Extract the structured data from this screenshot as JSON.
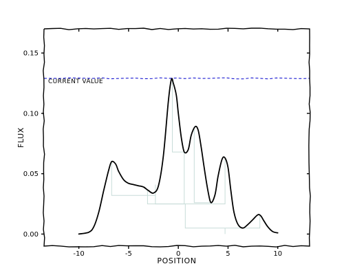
{
  "chart_data": {
    "type": "line",
    "style": "xkcd hand-drawn",
    "title": "",
    "xlabel": "POSITION",
    "ylabel": "FLUX",
    "xlim": [
      -13.5,
      13.2
    ],
    "ylim": [
      -0.01,
      0.17
    ],
    "xticks": [
      -10,
      -5,
      0,
      5,
      10
    ],
    "yticks": [
      0.0,
      0.05,
      0.1,
      0.15
    ],
    "xtick_labels": [
      "-10",
      "-5",
      "0",
      "5",
      "10"
    ],
    "ytick_labels": [
      "0.00",
      "0.05",
      "0.10",
      "0.15"
    ],
    "grid": false,
    "reference_line": {
      "label": "CURRENT VALUE",
      "y": 0.129,
      "color": "#0000cc",
      "style": "dashed"
    },
    "series": [
      {
        "color": "#000000",
        "x": [
          -10.0,
          -9.0,
          -8.5,
          -8.0,
          -7.5,
          -7.0,
          -6.7,
          -6.3,
          -6.0,
          -5.5,
          -5.0,
          -4.5,
          -4.0,
          -3.5,
          -3.0,
          -2.5,
          -2.0,
          -1.5,
          -1.0,
          -0.7,
          -0.5,
          -0.2,
          0.0,
          0.3,
          0.6,
          1.0,
          1.3,
          1.7,
          2.0,
          2.3,
          2.6,
          3.0,
          3.3,
          3.7,
          4.0,
          4.4,
          4.7,
          5.0,
          5.3,
          5.6,
          6.0,
          6.5,
          7.0,
          7.5,
          8.0,
          8.3,
          8.6,
          9.0,
          9.5,
          10.0
        ],
        "y": [
          0.0,
          0.0015,
          0.006,
          0.018,
          0.036,
          0.053,
          0.06,
          0.058,
          0.052,
          0.045,
          0.042,
          0.041,
          0.04,
          0.039,
          0.036,
          0.034,
          0.04,
          0.065,
          0.11,
          0.128,
          0.125,
          0.115,
          0.1,
          0.08,
          0.068,
          0.07,
          0.082,
          0.089,
          0.086,
          0.072,
          0.055,
          0.035,
          0.026,
          0.033,
          0.048,
          0.062,
          0.063,
          0.055,
          0.035,
          0.018,
          0.008,
          0.005,
          0.008,
          0.012,
          0.016,
          0.015,
          0.011,
          0.006,
          0.002,
          0.001
        ]
      }
    ],
    "tree_bracket_color": "#c7dcd8",
    "tree_brackets": [
      {
        "x": [
          -6.7,
          -6.7,
          -2.3,
          -2.3
        ],
        "y": [
          0.06,
          0.032,
          0.032,
          0.041
        ]
      },
      {
        "x": [
          -3.1,
          -3.1,
          0.6,
          0.6
        ],
        "y": [
          0.036,
          0.025,
          0.025,
          0.068
        ]
      },
      {
        "x": [
          -0.6,
          -0.6,
          0.6,
          0.6
        ],
        "y": [
          0.128,
          0.068,
          0.068,
          0.068
        ]
      },
      {
        "x": [
          -2.3,
          -2.3,
          4.7,
          4.7
        ],
        "y": [
          0.032,
          0.025,
          0.025,
          0.063
        ]
      },
      {
        "x": [
          1.6,
          1.6,
          3.3,
          3.3
        ],
        "y": [
          0.089,
          0.026,
          0.026,
          0.026
        ]
      },
      {
        "x": [
          0.7,
          0.7,
          8.2,
          8.2
        ],
        "y": [
          0.025,
          0.005,
          0.005,
          0.016
        ]
      },
      {
        "x": [
          4.7,
          4.7,
          4.7,
          4.7
        ],
        "y": [
          0.005,
          0.0,
          0.0,
          0.0
        ]
      }
    ]
  }
}
